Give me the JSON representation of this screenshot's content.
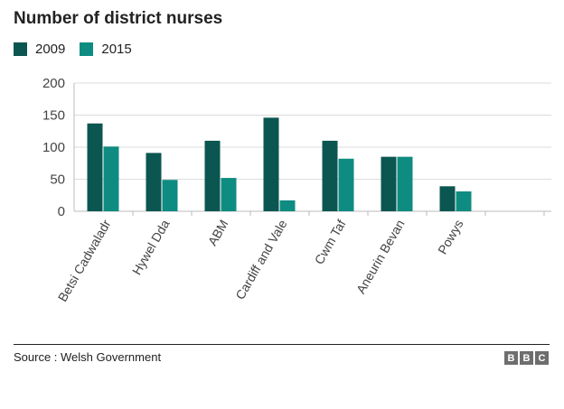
{
  "chart_data": {
    "type": "bar",
    "title": "Number of district nurses",
    "xlabel": "",
    "ylabel": "",
    "categories": [
      "Betsi Cadwaladr",
      "Hywel Dda",
      "ABM",
      "Cardiff and Vale",
      "Cwm Taf",
      "Aneurin Bevan",
      "Powys"
    ],
    "series": [
      {
        "name": "2009",
        "color": "#0b5650",
        "values": [
          137,
          91,
          110,
          146,
          110,
          85,
          39
        ]
      },
      {
        "name": "2015",
        "color": "#0f8c81",
        "values": [
          101,
          49,
          52,
          17,
          82,
          85,
          31
        ]
      }
    ],
    "ylim": [
      0,
      200
    ],
    "yticks": [
      "0",
      "50",
      "100",
      "150",
      "200"
    ],
    "grid": true,
    "legend_position": "top-left"
  },
  "footer": {
    "source": "Source : Welsh Government",
    "logo_letters": [
      "B",
      "B",
      "C"
    ]
  }
}
